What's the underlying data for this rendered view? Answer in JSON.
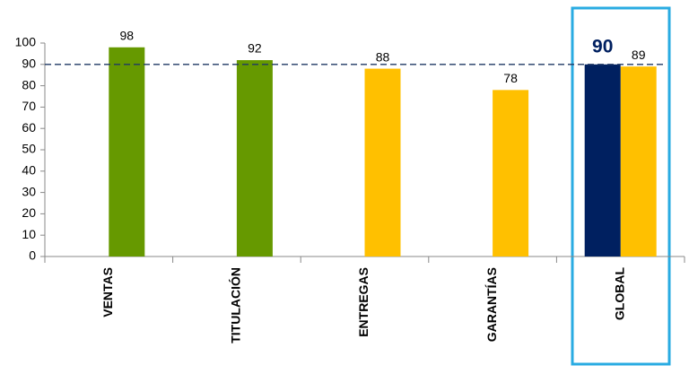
{
  "chart_data": {
    "type": "bar",
    "categories": [
      "VENTAS",
      "TITULACIÓN",
      "ENTREGAS",
      "GARANTÍAS",
      "GLOBAL"
    ],
    "values": [
      98,
      92,
      88,
      78,
      89
    ],
    "colors": [
      "#669900",
      "#669900",
      "#ffc000",
      "#ffc000",
      "#ffc000"
    ],
    "target": 90,
    "target_color": "#002060",
    "ylim": [
      0,
      100
    ],
    "yticks": [
      0,
      10,
      20,
      30,
      40,
      50,
      60,
      70,
      80,
      90,
      100
    ]
  }
}
